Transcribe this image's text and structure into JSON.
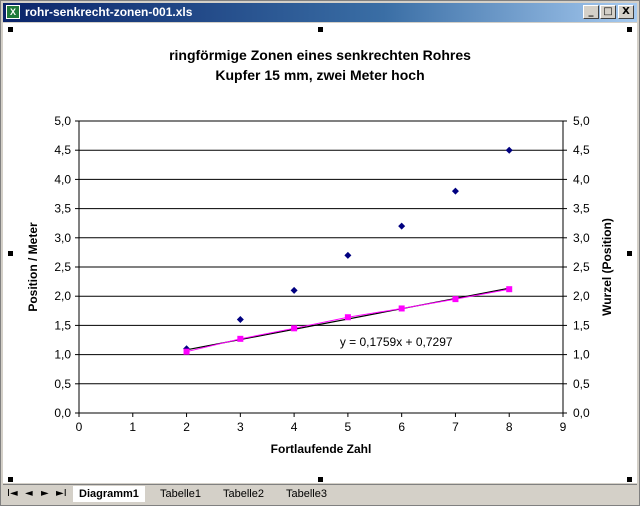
{
  "window": {
    "title": "rohr-senkrecht-zonen-001.xls",
    "app_icon_label": "X",
    "minimize_label": "_",
    "restore_label": "□",
    "close_label": "X"
  },
  "chart_data": {
    "type": "scatter",
    "title": "ringförmige Zonen eines senkrechten Rohres",
    "subtitle": "Kupfer 15 mm, zwei Meter hoch",
    "xlabel": "Fortlaufende Zahl",
    "ylabel": "Position / Meter",
    "y2label": "Wurzel (Position)",
    "xlim": [
      0,
      9
    ],
    "ylim": [
      0,
      5
    ],
    "y2lim": [
      0,
      5
    ],
    "x_ticks": [
      "0",
      "1",
      "2",
      "3",
      "4",
      "5",
      "6",
      "7",
      "8",
      "9"
    ],
    "y_ticks": [
      "0,0",
      "0,5",
      "1,0",
      "1,5",
      "2,0",
      "2,5",
      "3,0",
      "3,5",
      "4,0",
      "4,5",
      "5,0"
    ],
    "grid": true,
    "series": [
      {
        "axis": "left",
        "marker": "diamond",
        "color": "#000080",
        "x": [
          2,
          3,
          4,
          5,
          6,
          7,
          8
        ],
        "y": [
          1.1,
          1.6,
          2.1,
          2.7,
          3.2,
          3.8,
          4.5
        ]
      },
      {
        "axis": "right",
        "marker": "square",
        "color": "#ff00ff",
        "x": [
          2,
          3,
          4,
          5,
          6,
          7,
          8
        ],
        "y": [
          1.05,
          1.27,
          1.45,
          1.64,
          1.79,
          1.95,
          2.12
        ]
      }
    ],
    "trendline": {
      "color": "#000000",
      "slope": 0.1759,
      "intercept": 0.7297,
      "x_range": [
        2,
        8
      ],
      "label": "y = 0,1759x + 0,7297"
    }
  },
  "tabs": {
    "nav_first": "I◄",
    "nav_prev": "◄",
    "nav_next": "►",
    "nav_last": "►I",
    "items": [
      {
        "label": "Diagramm1",
        "active": true
      },
      {
        "label": "Tabelle1",
        "active": false
      },
      {
        "label": "Tabelle2",
        "active": false
      },
      {
        "label": "Tabelle3",
        "active": false
      }
    ]
  }
}
